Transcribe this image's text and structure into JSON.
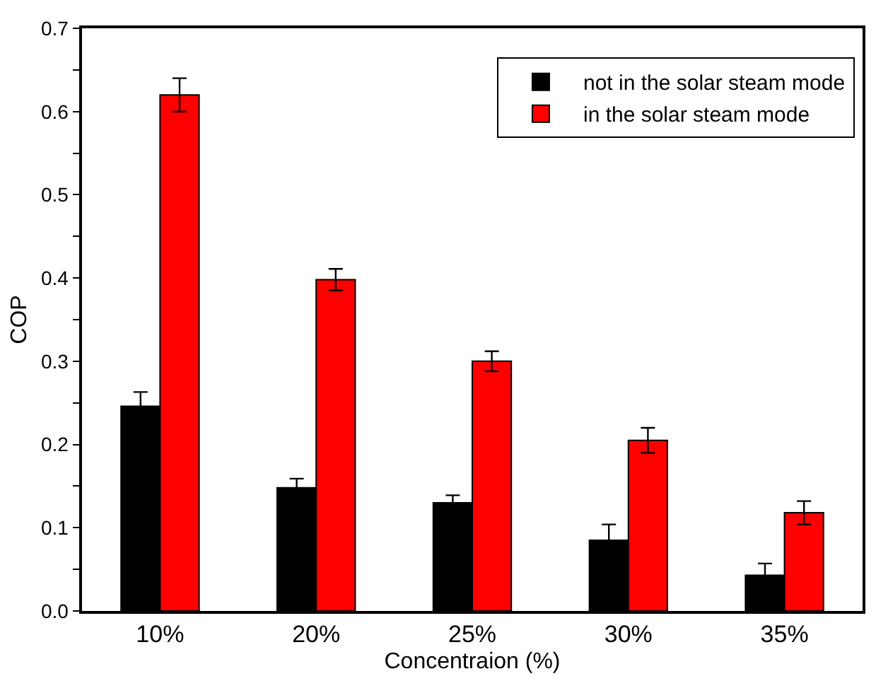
{
  "chart_data": {
    "type": "bar",
    "xlabel": "Concentraion (%)",
    "ylabel": "COP",
    "categories": [
      "10%",
      "20%",
      "25%",
      "30%",
      "35%"
    ],
    "series": [
      {
        "name": "not in the solar steam mode",
        "color": "#000000",
        "values": [
          0.246,
          0.148,
          0.13,
          0.085,
          0.043
        ],
        "errors": [
          0.017,
          0.011,
          0.009,
          0.019,
          0.014
        ]
      },
      {
        "name": "in the solar steam mode",
        "color": "#ff0000",
        "values": [
          0.62,
          0.398,
          0.3,
          0.205,
          0.118
        ],
        "errors": [
          0.02,
          0.013,
          0.012,
          0.015,
          0.014
        ]
      }
    ],
    "ylim": [
      0,
      0.7
    ],
    "yticks": [
      {
        "value": 0,
        "label": "0.0"
      },
      {
        "value": 0.05,
        "label": null
      },
      0.1,
      {
        "value": 0.15,
        "label": null
      },
      0.2,
      {
        "value": 0.25,
        "label": null
      },
      0.3,
      {
        "value": 0.35,
        "label": null
      },
      0.4,
      {
        "value": 0.45,
        "label": null
      },
      0.5,
      {
        "value": 0.55,
        "label": null
      },
      0.6,
      {
        "value": 0.65,
        "label": null
      },
      0.7
    ],
    "legend": "top right"
  }
}
